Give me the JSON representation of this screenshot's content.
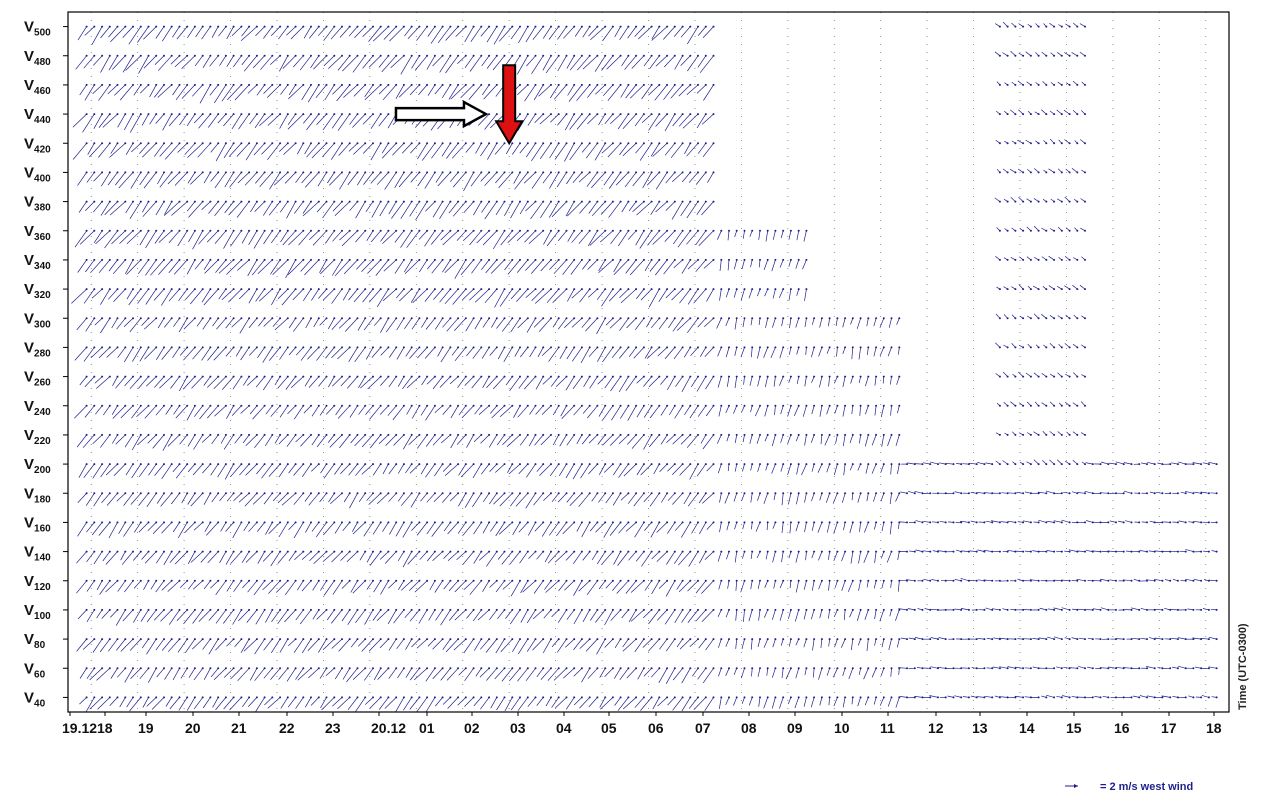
{
  "chart_data": {
    "type": "wind-profiler-time-height",
    "title": "",
    "xlabel": "Time (UTC-0300)",
    "ylabel": "",
    "y_tick_prefix": "V",
    "y_ticks": [
      40,
      60,
      80,
      100,
      120,
      140,
      160,
      180,
      200,
      220,
      240,
      260,
      280,
      300,
      320,
      340,
      360,
      380,
      400,
      420,
      440,
      460,
      480,
      500
    ],
    "x_tick_labels": [
      "19.12",
      "18",
      "19",
      "20",
      "21",
      "22",
      "23",
      "20.12",
      "01",
      "02",
      "03",
      "04",
      "05",
      "06",
      "07",
      "08",
      "09",
      "10",
      "11",
      "12",
      "13",
      "14",
      "15",
      "16",
      "17",
      "18"
    ],
    "x_range_hours": [
      17.5,
      42.5
    ],
    "grid": true,
    "legend": {
      "placement": "bottom-right",
      "text": "= 2 m/s west wind",
      "reference_speed_ms": 2
    },
    "annotations": [
      {
        "type": "arrow",
        "style": "outlined-white",
        "direction": "right",
        "points_to": {
          "hour": 26.5,
          "level": 440
        }
      },
      {
        "type": "arrow",
        "style": "filled-red",
        "direction": "down",
        "points_to": {
          "hour": 27.0,
          "level": 420
        }
      }
    ],
    "wind_regimes": [
      {
        "hours": [
          17.5,
          31.5
        ],
        "levels": [
          40,
          500
        ],
        "approx_direction": "from south-west",
        "approx_speed_ms": 12
      },
      {
        "hours": [
          31.5,
          35.5
        ],
        "levels": [
          40,
          360
        ],
        "approx_direction": "from south to south-west",
        "approx_speed_ms": 8
      },
      {
        "hours": [
          35.5,
          42.5
        ],
        "levels": [
          40,
          200
        ],
        "approx_direction": "from west",
        "approx_speed_ms": 6
      },
      {
        "hours": [
          37.5,
          39.5
        ],
        "levels": [
          200,
          500
        ],
        "approx_direction": "from north-west",
        "approx_speed_ms": 5
      }
    ]
  },
  "colors": {
    "wind_barb": "#1f1f8c",
    "dots": "#1f1f8c",
    "axis": "#000000",
    "grid": "#777777",
    "arrow_red": "#dd1111",
    "arrow_outline": "#000000"
  }
}
